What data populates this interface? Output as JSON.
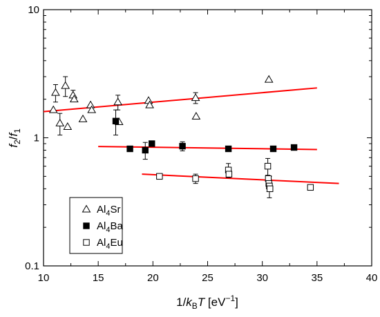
{
  "chart_data": {
    "type": "scatter",
    "xlabel": {
      "prefix": "1/",
      "k": "k",
      "sub": "B",
      "T": "T",
      "unit": " [eV",
      "exp": "−1",
      "close": "]"
    },
    "ylabel": {
      "f2": "f",
      "sub2": "2",
      "slash": "/",
      "f1": "f",
      "sub1": "1"
    },
    "xlim": [
      10,
      40
    ],
    "ylim": [
      0.1,
      10
    ],
    "yscale": "log",
    "x_ticks": [
      10,
      15,
      20,
      25,
      30,
      35,
      40
    ],
    "x_tick_labels": [
      "10",
      "15",
      "20",
      "25",
      "30",
      "35",
      "40"
    ],
    "y_ticks": [
      0.1,
      1,
      10
    ],
    "y_tick_labels": [
      "0.1",
      "1",
      "10"
    ],
    "legend_position": "bottom-left",
    "fit_color": "#ff0000",
    "series": [
      {
        "name": {
          "base": "Al",
          "sub": "4",
          "rest": "Sr"
        },
        "marker": "open-triangle",
        "points": [
          {
            "x": 10.9,
            "y": 1.65
          },
          {
            "x": 11.1,
            "y": 2.25,
            "err": 0.35
          },
          {
            "x": 11.5,
            "y": 1.3,
            "err": 0.25
          },
          {
            "x": 12.0,
            "y": 2.55,
            "err": 0.45
          },
          {
            "x": 12.2,
            "y": 1.22
          },
          {
            "x": 12.7,
            "y": 2.15,
            "err": 0.2
          },
          {
            "x": 12.8,
            "y": 2.0
          },
          {
            "x": 13.6,
            "y": 1.4
          },
          {
            "x": 14.3,
            "y": 1.8
          },
          {
            "x": 14.4,
            "y": 1.65
          },
          {
            "x": 16.8,
            "y": 1.9,
            "err": 0.25
          },
          {
            "x": 16.9,
            "y": 1.33
          },
          {
            "x": 19.6,
            "y": 1.95
          },
          {
            "x": 19.7,
            "y": 1.8
          },
          {
            "x": 23.9,
            "y": 2.05,
            "err": 0.2
          },
          {
            "x": 23.95,
            "y": 1.47
          },
          {
            "x": 30.6,
            "y": 2.85
          }
        ],
        "fit": {
          "x": [
            10,
            35
          ],
          "y": [
            1.6,
            2.45
          ]
        }
      },
      {
        "name": {
          "base": "Al",
          "sub": "4",
          "rest": "Ba"
        },
        "marker": "filled-square",
        "points": [
          {
            "x": 16.6,
            "y": 1.35,
            "err": 0.3
          },
          {
            "x": 17.9,
            "y": 0.82
          },
          {
            "x": 19.3,
            "y": 0.8,
            "err": 0.12
          },
          {
            "x": 19.9,
            "y": 0.9
          },
          {
            "x": 22.7,
            "y": 0.86,
            "err": 0.07
          },
          {
            "x": 26.9,
            "y": 0.82
          },
          {
            "x": 31.0,
            "y": 0.82
          },
          {
            "x": 32.9,
            "y": 0.84
          }
        ],
        "fit": {
          "x": [
            15,
            35
          ],
          "y": [
            0.855,
            0.81
          ]
        }
      },
      {
        "name": {
          "base": "Al",
          "sub": "4",
          "rest": "Eu"
        },
        "marker": "open-square",
        "points": [
          {
            "x": 20.6,
            "y": 0.5
          },
          {
            "x": 23.9,
            "y": 0.48,
            "err": 0.04
          },
          {
            "x": 26.9,
            "y": 0.56,
            "err": 0.07
          },
          {
            "x": 26.95,
            "y": 0.52
          },
          {
            "x": 30.5,
            "y": 0.6,
            "err": 0.09
          },
          {
            "x": 30.55,
            "y": 0.48
          },
          {
            "x": 30.6,
            "y": 0.44,
            "err": 0.06
          },
          {
            "x": 30.65,
            "y": 0.42,
            "err": 0.08
          },
          {
            "x": 30.7,
            "y": 0.4
          },
          {
            "x": 34.4,
            "y": 0.41
          }
        ],
        "fit": {
          "x": [
            19,
            37
          ],
          "y": [
            0.52,
            0.44
          ]
        }
      }
    ]
  }
}
